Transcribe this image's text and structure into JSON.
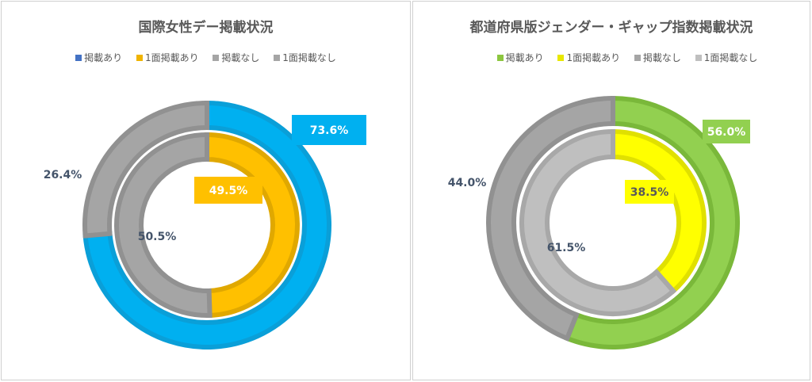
{
  "chart_data": [
    {
      "type": "pie",
      "subtype": "multi-ring donut",
      "title": "国際女性デー掲載状況",
      "legend": [
        "掲載あり",
        "1面掲載あり",
        "掲載なし",
        "1面掲載なし"
      ],
      "legend_colors": [
        "#4472C4",
        "#F0B400",
        "#A5A5A5",
        "#A5A5A5"
      ],
      "legend_placement": "top",
      "rings": [
        {
          "name": "outer",
          "slices": [
            {
              "label": "掲載あり",
              "value": 73.6,
              "text": "73.6%",
              "color": "#00B0F0",
              "stroke": "#0A9FD8",
              "label_style": "box"
            },
            {
              "label": "掲載なし",
              "value": 26.4,
              "text": "26.4%",
              "color": "#A5A5A5",
              "stroke": "#919191",
              "label_style": "plain"
            }
          ]
        },
        {
          "name": "inner",
          "slices": [
            {
              "label": "1面掲載あり",
              "value": 49.5,
              "text": "49.5%",
              "color": "#FFC000",
              "stroke": "#E0A800",
              "label_style": "box"
            },
            {
              "label": "1面掲載なし",
              "value": 50.5,
              "text": "50.5%",
              "color": "#A5A5A5",
              "stroke": "#919191",
              "label_style": "plain"
            }
          ]
        }
      ]
    },
    {
      "type": "pie",
      "subtype": "multi-ring donut",
      "title": "都道府県版ジェンダー・ギャップ指数掲載状況",
      "legend": [
        "掲載あり",
        "1面掲載あり",
        "掲載なし",
        "1面掲載なし"
      ],
      "legend_colors": [
        "#8CC63F",
        "#E8E800",
        "#A5A5A5",
        "#BFBFBF"
      ],
      "legend_placement": "top",
      "rings": [
        {
          "name": "outer",
          "slices": [
            {
              "label": "掲載あり",
              "value": 56.0,
              "text": "56.0%",
              "color": "#92D050",
              "stroke": "#7AB83A",
              "label_style": "box"
            },
            {
              "label": "掲載なし",
              "value": 44.0,
              "text": "44.0%",
              "color": "#A5A5A5",
              "stroke": "#919191",
              "label_style": "plain"
            }
          ]
        },
        {
          "name": "inner",
          "slices": [
            {
              "label": "1面掲載あり",
              "value": 38.5,
              "text": "38.5%",
              "color": "#FFFF00",
              "stroke": "#E0E000",
              "label_style": "box-dark"
            },
            {
              "label": "1面掲載なし",
              "value": 61.5,
              "text": "61.5%",
              "color": "#BFBFBF",
              "stroke": "#A8A8A8",
              "label_style": "plain"
            }
          ]
        }
      ]
    }
  ]
}
